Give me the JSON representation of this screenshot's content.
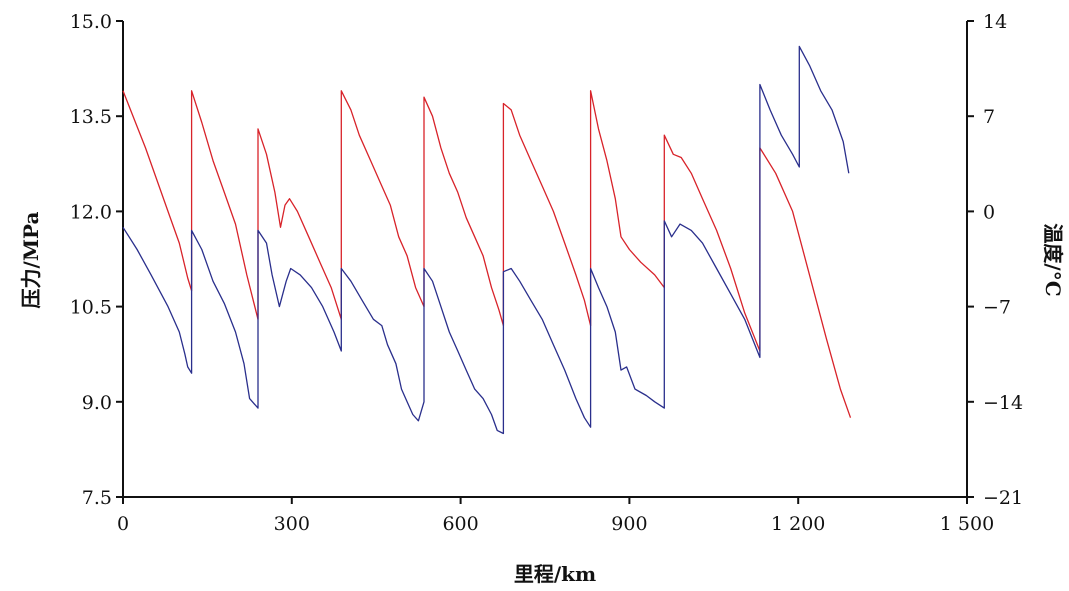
{
  "chart_data": {
    "type": "line",
    "xlabel": "里程/km",
    "ylabel_left": "压力/MPa",
    "ylabel_right": "温度/°C",
    "xlim": [
      0,
      1500
    ],
    "ylim_left": [
      7.5,
      15.0
    ],
    "ylim_right": [
      -21,
      14
    ],
    "x_ticks": [
      0,
      300,
      600,
      900,
      1200,
      1500
    ],
    "x_tick_labels": [
      "0",
      "300",
      "600",
      "900",
      "1 200",
      "1 500"
    ],
    "y_left_ticks": [
      7.5,
      9.0,
      10.5,
      12.0,
      13.5,
      15.0
    ],
    "y_left_tick_labels": [
      "7.5",
      "9.0",
      "10.5",
      "12.0",
      "13.5",
      "15.0"
    ],
    "y_right_ticks": [
      -21,
      -14,
      -7,
      0,
      7,
      14
    ],
    "y_right_tick_labels": [
      "−21",
      "−14",
      "−7",
      "0",
      "7",
      "14"
    ],
    "grid": false,
    "series": [
      {
        "axis": "left",
        "color": "#d8232a",
        "points": [
          [
            0,
            13.9
          ],
          [
            40,
            13.0
          ],
          [
            80,
            12.0
          ],
          [
            100,
            11.5
          ],
          [
            115,
            10.95
          ],
          [
            122,
            10.75
          ],
          [
            122,
            13.9
          ],
          [
            140,
            13.4
          ],
          [
            160,
            12.8
          ],
          [
            180,
            12.3
          ],
          [
            200,
            11.8
          ],
          [
            220,
            11.0
          ],
          [
            240,
            10.3
          ],
          [
            240,
            13.3
          ],
          [
            255,
            12.9
          ],
          [
            270,
            12.3
          ],
          [
            280,
            11.75
          ],
          [
            288,
            12.1
          ],
          [
            296,
            12.2
          ],
          [
            310,
            12.0
          ],
          [
            330,
            11.6
          ],
          [
            350,
            11.2
          ],
          [
            370,
            10.8
          ],
          [
            388,
            10.3
          ],
          [
            388,
            13.9
          ],
          [
            405,
            13.6
          ],
          [
            420,
            13.2
          ],
          [
            440,
            12.8
          ],
          [
            460,
            12.4
          ],
          [
            475,
            12.1
          ],
          [
            490,
            11.6
          ],
          [
            505,
            11.3
          ],
          [
            520,
            10.8
          ],
          [
            530,
            10.6
          ],
          [
            535,
            10.5
          ],
          [
            535,
            13.8
          ],
          [
            550,
            13.5
          ],
          [
            565,
            13.0
          ],
          [
            580,
            12.6
          ],
          [
            595,
            12.3
          ],
          [
            610,
            11.9
          ],
          [
            625,
            11.6
          ],
          [
            640,
            11.3
          ],
          [
            655,
            10.8
          ],
          [
            668,
            10.45
          ],
          [
            676,
            10.2
          ],
          [
            676,
            13.7
          ],
          [
            690,
            13.6
          ],
          [
            705,
            13.2
          ],
          [
            725,
            12.8
          ],
          [
            745,
            12.4
          ],
          [
            765,
            12.0
          ],
          [
            785,
            11.5
          ],
          [
            805,
            11.0
          ],
          [
            820,
            10.6
          ],
          [
            831,
            10.2
          ],
          [
            831,
            13.9
          ],
          [
            845,
            13.3
          ],
          [
            860,
            12.8
          ],
          [
            875,
            12.2
          ],
          [
            885,
            11.6
          ],
          [
            900,
            11.4
          ],
          [
            920,
            11.2
          ],
          [
            945,
            11.0
          ],
          [
            962,
            10.8
          ],
          [
            962,
            13.2
          ],
          [
            978,
            12.9
          ],
          [
            992,
            12.85
          ],
          [
            1010,
            12.6
          ],
          [
            1030,
            12.2
          ],
          [
            1055,
            11.7
          ],
          [
            1080,
            11.1
          ],
          [
            1105,
            10.4
          ],
          [
            1132,
            9.8
          ],
          [
            1132,
            13.0
          ],
          [
            1160,
            12.6
          ],
          [
            1190,
            12.0
          ],
          [
            1220,
            11.0
          ],
          [
            1250,
            10.0
          ],
          [
            1275,
            9.2
          ],
          [
            1293,
            8.75
          ]
        ]
      },
      {
        "axis": "left",
        "color": "#2a2f8c",
        "points": [
          [
            0,
            11.75
          ],
          [
            25,
            11.4
          ],
          [
            50,
            11.0
          ],
          [
            80,
            10.5
          ],
          [
            100,
            10.1
          ],
          [
            110,
            9.75
          ],
          [
            115,
            9.55
          ],
          [
            122,
            9.45
          ],
          [
            122,
            11.7
          ],
          [
            140,
            11.4
          ],
          [
            160,
            10.9
          ],
          [
            180,
            10.55
          ],
          [
            200,
            10.1
          ],
          [
            215,
            9.6
          ],
          [
            225,
            9.05
          ],
          [
            240,
            8.9
          ],
          [
            240,
            11.7
          ],
          [
            255,
            11.5
          ],
          [
            265,
            11.0
          ],
          [
            278,
            10.5
          ],
          [
            290,
            10.9
          ],
          [
            298,
            11.1
          ],
          [
            315,
            11.0
          ],
          [
            335,
            10.8
          ],
          [
            355,
            10.5
          ],
          [
            375,
            10.1
          ],
          [
            388,
            9.8
          ],
          [
            388,
            11.1
          ],
          [
            405,
            10.9
          ],
          [
            425,
            10.6
          ],
          [
            445,
            10.3
          ],
          [
            460,
            10.2
          ],
          [
            470,
            9.9
          ],
          [
            485,
            9.6
          ],
          [
            495,
            9.2
          ],
          [
            505,
            9.0
          ],
          [
            515,
            8.8
          ],
          [
            525,
            8.7
          ],
          [
            535,
            9.0
          ],
          [
            535,
            11.1
          ],
          [
            550,
            10.9
          ],
          [
            565,
            10.5
          ],
          [
            580,
            10.1
          ],
          [
            595,
            9.8
          ],
          [
            610,
            9.5
          ],
          [
            625,
            9.2
          ],
          [
            640,
            9.05
          ],
          [
            655,
            8.8
          ],
          [
            665,
            8.55
          ],
          [
            676,
            8.5
          ],
          [
            676,
            11.05
          ],
          [
            690,
            11.1
          ],
          [
            705,
            10.9
          ],
          [
            725,
            10.6
          ],
          [
            745,
            10.3
          ],
          [
            765,
            9.9
          ],
          [
            785,
            9.5
          ],
          [
            805,
            9.05
          ],
          [
            820,
            8.75
          ],
          [
            831,
            8.6
          ],
          [
            831,
            11.1
          ],
          [
            845,
            10.8
          ],
          [
            860,
            10.5
          ],
          [
            875,
            10.1
          ],
          [
            885,
            9.5
          ],
          [
            895,
            9.55
          ],
          [
            910,
            9.2
          ],
          [
            930,
            9.1
          ],
          [
            945,
            9.0
          ],
          [
            962,
            8.9
          ],
          [
            962,
            11.85
          ],
          [
            975,
            11.6
          ],
          [
            990,
            11.8
          ],
          [
            1010,
            11.7
          ],
          [
            1030,
            11.5
          ],
          [
            1055,
            11.1
          ],
          [
            1080,
            10.7
          ],
          [
            1105,
            10.3
          ],
          [
            1132,
            9.7
          ],
          [
            1132,
            14.0
          ],
          [
            1150,
            13.6
          ],
          [
            1170,
            13.2
          ],
          [
            1190,
            12.9
          ],
          [
            1202,
            12.7
          ],
          [
            1202,
            14.6
          ],
          [
            1220,
            14.3
          ],
          [
            1240,
            13.9
          ],
          [
            1260,
            13.6
          ],
          [
            1280,
            13.1
          ],
          [
            1290,
            12.6
          ]
        ]
      }
    ]
  }
}
